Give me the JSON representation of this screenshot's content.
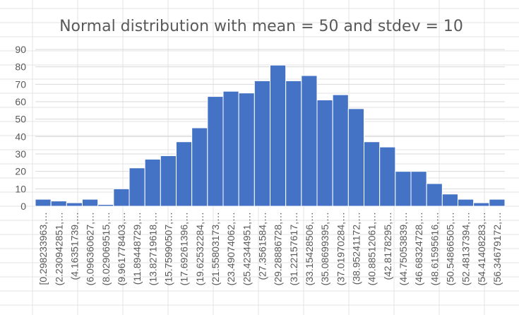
{
  "chart_data": {
    "type": "bar",
    "title": "Normal distribution with mean = 50 and stdev = 10",
    "xlabel": "",
    "ylabel": "",
    "ylim": [
      0,
      90
    ],
    "yticks": [
      0,
      10,
      20,
      30,
      40,
      50,
      60,
      70,
      80,
      90
    ],
    "grid": true,
    "legend": "none",
    "bar_color": "#4472C4",
    "categories": [
      "[0.298233963,…",
      "(2.230942851,…",
      "(4.16351739,…",
      "(6.096360627,…",
      "(8.029069515,…",
      "(9.961778403,…",
      "(11.89448729,…",
      "(13.82719618,…",
      "(15.75990507,…",
      "(17.69261396,…",
      "(19.62532284,…",
      "(21.55803173,…",
      "(23.49074062,…",
      "(25.42344951,…",
      "(27.3561584,…",
      "(29.28886728,…",
      "(31.22157617,…",
      "(33.15428506,…",
      "(35.08699395,…",
      "(37.01970284,…",
      "(38.95241172,…",
      "(40.88512061,…",
      "(42.8178295,…",
      "(44.75053839,…",
      "(46.68324728,…",
      "(48.61595616,…",
      "(50.54866505,…",
      "(52.48137394,…",
      "(54.41408283,…",
      "(56.34679172,…"
    ],
    "values": [
      4,
      3,
      2,
      4,
      1,
      10,
      22,
      27,
      29,
      37,
      45,
      63,
      66,
      65,
      72,
      81,
      72,
      75,
      61,
      64,
      56,
      37,
      34,
      20,
      20,
      13,
      7,
      4,
      2,
      4
    ]
  }
}
